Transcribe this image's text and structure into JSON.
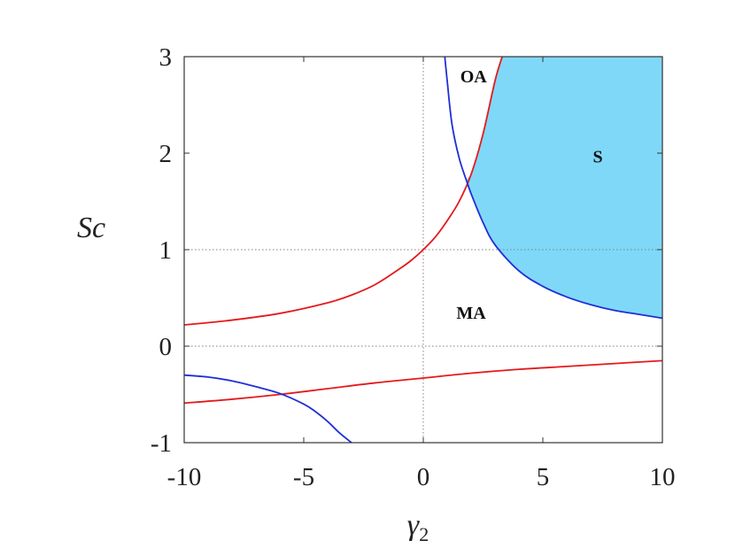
{
  "chart_data": {
    "type": "line",
    "title": "",
    "xlabel": "γ",
    "xlabel_sub": "2",
    "ylabel": "Sc",
    "xlim": [
      -10,
      10
    ],
    "ylim": [
      -1,
      3
    ],
    "xticks": [
      {
        "value": -10,
        "label": "-10"
      },
      {
        "value": -5,
        "label": "-5"
      },
      {
        "value": 0,
        "label": "0"
      },
      {
        "value": 5,
        "label": "5"
      },
      {
        "value": 10,
        "label": "10"
      }
    ],
    "yticks": [
      {
        "value": -1,
        "label": "-1"
      },
      {
        "value": 0,
        "label": "0"
      },
      {
        "value": 1,
        "label": "1"
      },
      {
        "value": 2,
        "label": "2"
      },
      {
        "value": 3,
        "label": "3"
      }
    ],
    "reference_lines": {
      "vertical_x": [
        0
      ],
      "horizontal_y": [
        0,
        1
      ],
      "style": "dotted",
      "color": "#808080"
    },
    "colors": {
      "red_curve": "#e41a1c",
      "blue_curve": "#1f2fd6",
      "stable_fill": "#7fd8f8",
      "axes": "#333333"
    },
    "series": [
      {
        "curve": "red_upper",
        "color": "#e41a1c",
        "x": [
          -10,
          -8,
          -6,
          -4,
          -3,
          -2,
          -1,
          -0.5,
          0,
          0.5,
          1,
          1.5,
          2,
          2.5,
          3,
          3.3
        ],
        "y": [
          0.22,
          0.27,
          0.34,
          0.45,
          0.53,
          0.64,
          0.8,
          0.89,
          1.0,
          1.13,
          1.3,
          1.5,
          1.78,
          2.2,
          2.75,
          3.0
        ]
      },
      {
        "curve": "red_lower",
        "color": "#e41a1c",
        "x": [
          -10,
          -8,
          -6,
          -4,
          -2,
          0,
          2,
          4,
          6,
          8,
          10
        ],
        "y": [
          -0.59,
          -0.55,
          -0.5,
          -0.44,
          -0.38,
          -0.33,
          -0.28,
          -0.24,
          -0.21,
          -0.18,
          -0.15
        ]
      },
      {
        "curve": "blue_upper",
        "color": "#1f2fd6",
        "x": [
          0.9,
          1.0,
          1.2,
          1.5,
          1.8,
          2.0,
          2.5,
          3.0,
          4.0,
          5.0,
          6.0,
          7.0,
          8.0,
          9.0,
          10.0
        ],
        "y": [
          3.0,
          2.75,
          2.3,
          1.95,
          1.72,
          1.58,
          1.28,
          1.05,
          0.78,
          0.62,
          0.51,
          0.43,
          0.37,
          0.33,
          0.29
        ]
      },
      {
        "curve": "blue_lower",
        "color": "#1f2fd6",
        "x": [
          -10,
          -9,
          -8,
          -7,
          -6,
          -5,
          -4.5,
          -4,
          -3.5,
          -3
        ],
        "y": [
          -0.3,
          -0.32,
          -0.36,
          -0.42,
          -0.49,
          -0.6,
          -0.68,
          -0.78,
          -0.9,
          -1.0
        ]
      }
    ],
    "shaded_region": {
      "label": "S",
      "color": "#7fd8f8",
      "boundary": "between red_upper (left) and blue_upper (below), extending to x = 10 and y = 3"
    },
    "annotations": [
      {
        "text": "OA",
        "x": 2.1,
        "y": 2.8
      },
      {
        "text": "S",
        "x": 7.3,
        "y": 1.97
      },
      {
        "text": "MA",
        "x": 2.0,
        "y": 0.35
      }
    ]
  }
}
